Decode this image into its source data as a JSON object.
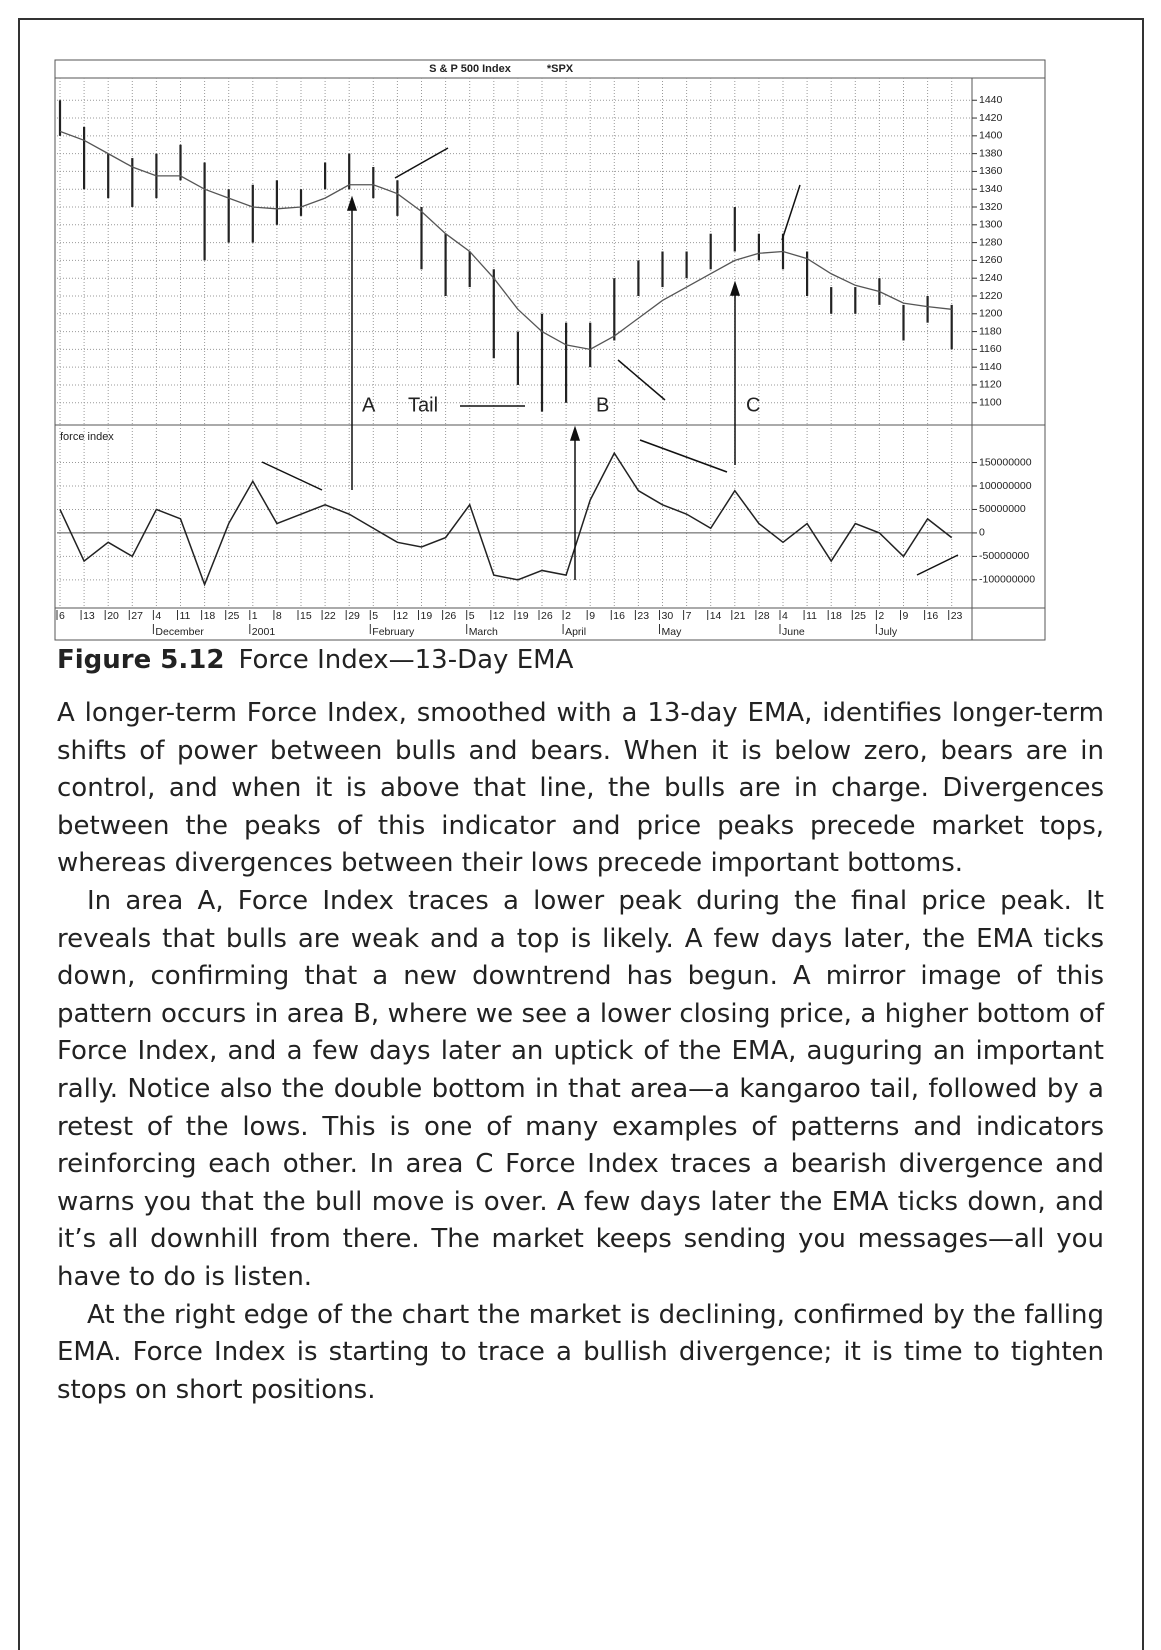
{
  "figure": {
    "chart_data": [
      {
        "type": "ohlc",
        "title": "S & P 500 Index",
        "symbol": "*SPX",
        "categories": [
          "6",
          "13",
          "20",
          "27",
          "4",
          "11",
          "18",
          "25",
          "1",
          "8",
          "15",
          "22",
          "29",
          "5",
          "12",
          "19",
          "26",
          "5",
          "12",
          "19",
          "26",
          "2",
          "9",
          "16",
          "23",
          "30",
          "7",
          "14",
          "21",
          "28",
          "4",
          "11",
          "18",
          "25",
          "2",
          "9",
          "16",
          "23"
        ],
        "month_labels": [
          null,
          null,
          null,
          null,
          "December",
          null,
          null,
          null,
          "2001",
          null,
          null,
          null,
          null,
          "February",
          null,
          null,
          null,
          "March",
          null,
          null,
          null,
          "April",
          null,
          null,
          null,
          "May",
          null,
          null,
          null,
          null,
          "June",
          null,
          null,
          null,
          "July",
          null,
          null,
          null
        ],
        "high": [
          1440,
          1410,
          1380,
          1375,
          1380,
          1390,
          1370,
          1340,
          1345,
          1350,
          1340,
          1370,
          1380,
          1365,
          1350,
          1320,
          1290,
          1270,
          1250,
          1180,
          1200,
          1190,
          1190,
          1240,
          1260,
          1270,
          1270,
          1290,
          1320,
          1290,
          1290,
          1270,
          1230,
          1230,
          1240,
          1210,
          1220,
          1210
        ],
        "low": [
          1400,
          1340,
          1330,
          1320,
          1330,
          1350,
          1260,
          1280,
          1280,
          1300,
          1310,
          1340,
          1340,
          1330,
          1310,
          1250,
          1220,
          1230,
          1150,
          1120,
          1090,
          1100,
          1140,
          1170,
          1220,
          1230,
          1240,
          1250,
          1270,
          1260,
          1250,
          1220,
          1200,
          1200,
          1210,
          1170,
          1190,
          1160
        ],
        "ema": [
          1405,
          1395,
          1380,
          1365,
          1355,
          1355,
          1340,
          1330,
          1320,
          1318,
          1320,
          1330,
          1345,
          1345,
          1335,
          1315,
          1290,
          1270,
          1240,
          1205,
          1180,
          1165,
          1160,
          1175,
          1195,
          1215,
          1230,
          1245,
          1260,
          1268,
          1270,
          1262,
          1245,
          1232,
          1225,
          1212,
          1208,
          1205
        ],
        "ylim": [
          1075,
          1465
        ],
        "yticks": [
          1100,
          1120,
          1140,
          1160,
          1180,
          1200,
          1220,
          1240,
          1260,
          1280,
          1300,
          1320,
          1340,
          1360,
          1380,
          1400,
          1420,
          1440
        ],
        "grid": true,
        "bar_color": "#222222",
        "ema_color": "#555555",
        "annotations": [
          "A",
          "Tail",
          "B",
          "C"
        ]
      },
      {
        "type": "line",
        "title": "force index",
        "values": [
          50000000,
          -60000000,
          -20000000,
          -50000000,
          50000000,
          30000000,
          -110000000,
          20000000,
          110000000,
          20000000,
          40000000,
          60000000,
          40000000,
          10000000,
          -20000000,
          -30000000,
          -10000000,
          60000000,
          -90000000,
          -100000000,
          -80000000,
          -90000000,
          70000000,
          170000000,
          90000000,
          60000000,
          40000000,
          10000000,
          90000000,
          20000000,
          -20000000,
          20000000,
          -60000000,
          20000000,
          0,
          -50000000,
          30000000,
          -10000000
        ],
        "ylim": [
          -160000000,
          230000000
        ],
        "yticks": [
          150000000,
          100000000,
          50000000,
          0,
          -50000000,
          -100000000
        ],
        "grid": true,
        "color": "#222222"
      }
    ],
    "caption_label": "Figure 5.12",
    "caption_text": "Force Index—13-Day EMA"
  },
  "paragraphs": [
    "A longer-term Force Index, smoothed with a 13-day EMA, identifies longer-term shifts of power between bulls and bears. When it is below zero, bears are in control, and when it is above that line, the bulls are in charge. Divergences between the peaks of this indicator and price peaks precede market tops, whereas divergences between their lows precede important bottoms.",
    "In area A, Force Index traces a lower peak during the final price peak. It reveals that bulls are weak and a top is likely. A few days later, the EMA ticks down, confirming that a new downtrend has begun. A mirror image of this pattern occurs in area B, where we see a lower closing price, a higher bottom of Force Index, and a few days later an uptick of the EMA, auguring an important rally. Notice also the double bottom in that area—a kangaroo tail, followed by a retest of the lows. This is one of many examples of patterns and indicators reinforcing each other. In area C Force Index traces a bearish divergence and warns you that the bull move is over. A few days later the EMA ticks down, and it’s all downhill from there. The market keeps sending you messages—all you have to do is listen.",
    "At the right edge of the chart the market is declining, confirmed by the falling EMA. Force Index is starting to trace a bullish divergence; it is time to tighten stops on short positions."
  ]
}
